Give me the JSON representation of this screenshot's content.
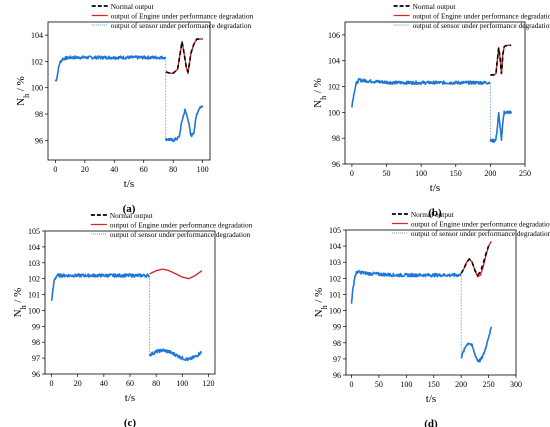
{
  "figure": {
    "legend_entries": [
      "Normal output",
      "output of Engine under performance degradation",
      "output of sensor under performance degradation"
    ],
    "colors": {
      "normal": "#000000",
      "engine": "#d62728",
      "sensor": "#1f77d4"
    }
  },
  "chart_data": [
    {
      "id": "a",
      "type": "line",
      "panel_label": "(a)",
      "xlabel": "t/s",
      "ylabel": "N",
      "ylabel_sub": "h",
      "ylabel_unit": "/ %",
      "xlim": [
        -5,
        105
      ],
      "ylim": [
        94.5,
        105
      ],
      "xticks": [
        0,
        20,
        40,
        60,
        80,
        100
      ],
      "yticks": [
        96,
        98,
        100,
        102,
        104
      ],
      "legend_position": "top-right",
      "series": [
        {
          "name": "Normal output",
          "style": "dashed",
          "points": [
            [
              75,
              101.2
            ],
            [
              78,
              101.1
            ],
            [
              80,
              101.1
            ],
            [
              83,
              101.4
            ],
            [
              85,
              102.8
            ],
            [
              86,
              103.5
            ],
            [
              87,
              102.9
            ],
            [
              88,
              102.2
            ],
            [
              89,
              101.5
            ],
            [
              90,
              101.2
            ],
            [
              91,
              101.8
            ],
            [
              92,
              102.6
            ],
            [
              94,
              103.3
            ],
            [
              96,
              103.7
            ],
            [
              98,
              103.7
            ],
            [
              100,
              103.7
            ]
          ]
        },
        {
          "name": "output of Engine under performance degradation",
          "style": "solid",
          "points": [
            [
              75,
              101.2
            ],
            [
              78,
              101.1
            ],
            [
              80,
              101.1
            ],
            [
              83,
              101.4
            ],
            [
              85,
              102.8
            ],
            [
              86,
              103.5
            ],
            [
              87,
              102.9
            ],
            [
              88,
              102.2
            ],
            [
              89,
              101.5
            ],
            [
              90,
              101.2
            ],
            [
              91,
              101.8
            ],
            [
              92,
              102.6
            ],
            [
              94,
              103.3
            ],
            [
              96,
              103.7
            ],
            [
              98,
              103.7
            ],
            [
              100,
              103.7
            ]
          ]
        },
        {
          "name": "output of sensor under performance degradation",
          "style": "noisy",
          "points": [
            [
              0,
              100.5
            ],
            [
              1,
              100.7
            ],
            [
              2,
              101.4
            ],
            [
              3,
              101.9
            ],
            [
              5,
              102.2
            ],
            [
              10,
              102.3
            ],
            [
              20,
              102.3
            ],
            [
              40,
              102.3
            ],
            [
              60,
              102.3
            ],
            [
              74.5,
              102.3
            ],
            [
              75,
              96.1
            ],
            [
              80,
              96.0
            ],
            [
              84,
              96.2
            ],
            [
              86,
              97.5
            ],
            [
              88,
              98.3
            ],
            [
              90,
              97.7
            ],
            [
              92,
              96.3
            ],
            [
              94,
              96.6
            ],
            [
              96,
              98.0
            ],
            [
              98,
              98.5
            ],
            [
              100,
              98.6
            ]
          ]
        }
      ],
      "connector_x": 75
    },
    {
      "id": "b",
      "type": "line",
      "panel_label": "(b)",
      "xlabel": "t/s",
      "ylabel": "N",
      "ylabel_sub": "h",
      "ylabel_unit": "/ %",
      "xlim": [
        -10,
        250
      ],
      "ylim": [
        96,
        107
      ],
      "xticks": [
        0,
        50,
        100,
        150,
        200,
        250
      ],
      "yticks": [
        96,
        98,
        100,
        102,
        104,
        106
      ],
      "legend_position": "top-right",
      "series": [
        {
          "name": "Normal output",
          "style": "dashed",
          "points": [
            [
              200,
              102.9
            ],
            [
              205,
              102.9
            ],
            [
              208,
              103.0
            ],
            [
              210,
              104.0
            ],
            [
              212,
              105.0
            ],
            [
              214,
              104.2
            ],
            [
              216,
              103.0
            ],
            [
              218,
              104.5
            ],
            [
              220,
              105.1
            ],
            [
              225,
              105.2
            ],
            [
              230,
              105.2
            ]
          ]
        },
        {
          "name": "output of Engine under performance degradation",
          "style": "solid",
          "points": [
            [
              200,
              102.9
            ],
            [
              205,
              102.9
            ],
            [
              208,
              103.0
            ],
            [
              210,
              104.0
            ],
            [
              212,
              105.0
            ],
            [
              214,
              104.2
            ],
            [
              216,
              103.0
            ],
            [
              218,
              104.5
            ],
            [
              220,
              105.1
            ],
            [
              225,
              105.2
            ],
            [
              230,
              105.2
            ]
          ]
        },
        {
          "name": "output of sensor under performance degradation",
          "style": "noisy",
          "points": [
            [
              0,
              100.5
            ],
            [
              3,
              101.5
            ],
            [
              6,
              102.2
            ],
            [
              10,
              102.5
            ],
            [
              30,
              102.4
            ],
            [
              60,
              102.3
            ],
            [
              100,
              102.3
            ],
            [
              150,
              102.3
            ],
            [
              199,
              102.3
            ],
            [
              200,
              97.8
            ],
            [
              205,
              97.8
            ],
            [
              208,
              97.9
            ],
            [
              210,
              98.8
            ],
            [
              212,
              99.9
            ],
            [
              214,
              98.9
            ],
            [
              216,
              97.8
            ],
            [
              218,
              99.3
            ],
            [
              220,
              100.0
            ],
            [
              225,
              100.0
            ],
            [
              230,
              100.0
            ]
          ]
        }
      ],
      "connector_x": 200
    },
    {
      "id": "c",
      "type": "line",
      "panel_label": "(c)",
      "xlabel": "t/s",
      "ylabel": "N",
      "ylabel_sub": "h",
      "ylabel_unit": "/ %",
      "xlim": [
        -5,
        125
      ],
      "ylim": [
        96,
        105
      ],
      "xticks": [
        0,
        20,
        40,
        60,
        80,
        100,
        120
      ],
      "yticks": [
        96,
        97,
        98,
        99,
        100,
        101,
        102,
        103,
        104,
        105
      ],
      "legend_position": "top-right",
      "series": [
        {
          "name": "Normal output",
          "style": "dashed",
          "points": []
        },
        {
          "name": "output of Engine under performance degradation",
          "style": "solid",
          "points": [
            [
              75,
              102.3
            ],
            [
              80,
              102.5
            ],
            [
              85,
              102.6
            ],
            [
              90,
              102.5
            ],
            [
              95,
              102.3
            ],
            [
              100,
              102.1
            ],
            [
              105,
              102.0
            ],
            [
              110,
              102.2
            ],
            [
              115,
              102.5
            ]
          ]
        },
        {
          "name": "output of sensor under performance degradation",
          "style": "noisy",
          "points": [
            [
              0,
              100.6
            ],
            [
              1,
              101.2
            ],
            [
              2,
              101.9
            ],
            [
              4,
              102.2
            ],
            [
              10,
              102.2
            ],
            [
              30,
              102.2
            ],
            [
              50,
              102.2
            ],
            [
              74.5,
              102.2
            ],
            [
              75,
              97.2
            ],
            [
              80,
              97.4
            ],
            [
              85,
              97.5
            ],
            [
              90,
              97.4
            ],
            [
              95,
              97.2
            ],
            [
              100,
              97.0
            ],
            [
              105,
              96.9
            ],
            [
              110,
              97.1
            ],
            [
              115,
              97.4
            ]
          ]
        }
      ],
      "connector_x": 75
    },
    {
      "id": "d",
      "type": "line",
      "panel_label": "(d)",
      "xlabel": "t/s",
      "ylabel": "N",
      "ylabel_sub": "h",
      "ylabel_unit": "/ %",
      "xlim": [
        -10,
        300
      ],
      "ylim": [
        96,
        105
      ],
      "xticks": [
        0,
        50,
        100,
        150,
        200,
        250,
        300
      ],
      "yticks": [
        96,
        97,
        98,
        99,
        100,
        101,
        102,
        103,
        104,
        105
      ],
      "legend_position": "top-right",
      "series": [
        {
          "name": "Normal output",
          "style": "dashed",
          "points": [
            [
              200,
              102.3
            ],
            [
              205,
              102.6
            ],
            [
              210,
              103.0
            ],
            [
              215,
              103.2
            ],
            [
              220,
              103.0
            ],
            [
              225,
              102.5
            ],
            [
              230,
              102.2
            ],
            [
              235,
              102.4
            ],
            [
              240,
              102.9
            ],
            [
              245,
              103.5
            ],
            [
              250,
              104.0
            ]
          ]
        },
        {
          "name": "output of Engine under performance degradation",
          "style": "solid",
          "points": [
            [
              200,
              102.3
            ],
            [
              205,
              102.6
            ],
            [
              210,
              103.0
            ],
            [
              215,
              103.2
            ],
            [
              220,
              103.0
            ],
            [
              225,
              102.5
            ],
            [
              230,
              102.1
            ],
            [
              235,
              102.2
            ],
            [
              240,
              102.7
            ],
            [
              245,
              103.4
            ],
            [
              250,
              104.0
            ],
            [
              255,
              104.3
            ]
          ]
        },
        {
          "name": "output of sensor under performance degradation",
          "style": "noisy",
          "points": [
            [
              0,
              100.5
            ],
            [
              3,
              101.4
            ],
            [
              6,
              102.1
            ],
            [
              10,
              102.4
            ],
            [
              30,
              102.3
            ],
            [
              80,
              102.2
            ],
            [
              150,
              102.2
            ],
            [
              199,
              102.2
            ],
            [
              200,
              97.1
            ],
            [
              205,
              97.5
            ],
            [
              210,
              97.9
            ],
            [
              215,
              98.0
            ],
            [
              220,
              97.8
            ],
            [
              225,
              97.3
            ],
            [
              230,
              96.9
            ],
            [
              235,
              96.9
            ],
            [
              240,
              97.2
            ],
            [
              245,
              97.7
            ],
            [
              250,
              98.4
            ],
            [
              255,
              98.9
            ]
          ]
        }
      ],
      "connector_x": 200
    }
  ]
}
